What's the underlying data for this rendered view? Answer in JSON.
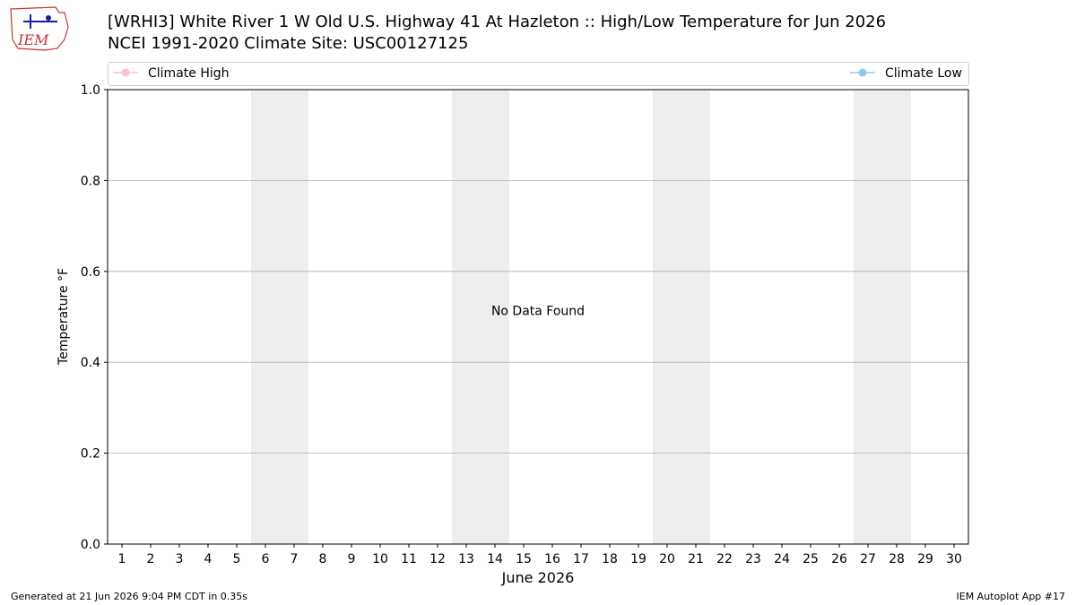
{
  "chart_data": {
    "type": "line",
    "title": "[WRHI3] White River 1 W Old U.S. Highway 41 At Hazleton :: High/Low Temperature for Jun 2026",
    "subtitle": "NCEI 1991-2020 Climate Site: USC00127125",
    "x_label": "June 2026",
    "y_label": "Temperature °F",
    "annotation": "No Data Found",
    "x": [
      1,
      2,
      3,
      4,
      5,
      6,
      7,
      8,
      9,
      10,
      11,
      12,
      13,
      14,
      15,
      16,
      17,
      18,
      19,
      20,
      21,
      22,
      23,
      24,
      25,
      26,
      27,
      28,
      29,
      30
    ],
    "xlim": [
      0.5,
      30.5
    ],
    "xticks": [
      1,
      2,
      3,
      4,
      5,
      6,
      7,
      8,
      9,
      10,
      11,
      12,
      13,
      14,
      15,
      16,
      17,
      18,
      19,
      20,
      21,
      22,
      23,
      24,
      25,
      26,
      27,
      28,
      29,
      30
    ],
    "ylim": [
      0,
      1
    ],
    "yticks": [
      {
        "value": 0,
        "label": "0.0"
      },
      0.2,
      0.4,
      0.6,
      0.8,
      {
        "value": 1,
        "label": "1.0"
      }
    ],
    "grid": "y",
    "shaded_spans": [
      [
        5.5,
        7.5
      ],
      [
        12.5,
        14.5
      ],
      [
        19.5,
        21.5
      ],
      [
        26.5,
        28.5
      ]
    ],
    "shade_color": "#eeeeee",
    "series": [
      {
        "name": "Climate High",
        "color": "pink",
        "values": [
          null,
          null,
          null,
          null,
          null,
          null,
          null,
          null,
          null,
          null,
          null,
          null,
          null,
          null,
          null,
          null,
          null,
          null,
          null,
          null,
          null,
          null,
          null,
          null,
          null,
          null,
          null,
          null,
          null,
          null
        ]
      },
      {
        "name": "Climate Low",
        "color": "skyblue",
        "values": [
          null,
          null,
          null,
          null,
          null,
          null,
          null,
          null,
          null,
          null,
          null,
          null,
          null,
          null,
          null,
          null,
          null,
          null,
          null,
          null,
          null,
          null,
          null,
          null,
          null,
          null,
          null,
          null,
          null,
          null
        ]
      }
    ]
  },
  "logo_text": "IEM",
  "footer_left": "Generated at 21 Jun 2026 9:04 PM CDT in 0.35s",
  "footer_right": "IEM Autoplot App #17"
}
